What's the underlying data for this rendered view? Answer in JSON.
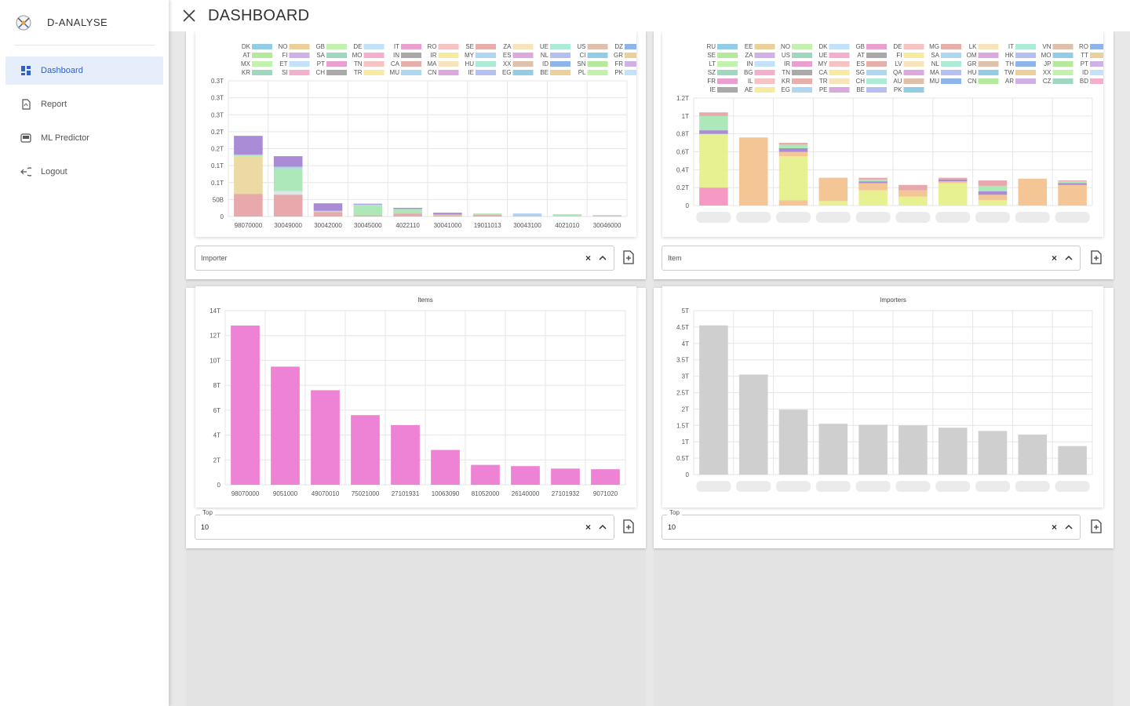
{
  "app": {
    "name": "D-ANALYSE"
  },
  "header": {
    "title": "DASHBOARD"
  },
  "sidebar": {
    "items": [
      {
        "label": "Dashboard",
        "icon": "dashboard-icon",
        "active": true
      },
      {
        "label": "Report",
        "icon": "report-icon",
        "active": false
      },
      {
        "label": "ML Predictor",
        "icon": "ml-predictor-icon",
        "active": false
      },
      {
        "label": "Logout",
        "icon": "logout-icon",
        "active": false
      }
    ]
  },
  "colors": {
    "accent": "#2f62c4",
    "active_bg": "#e6eefb",
    "bar_pink": "#ee82d4",
    "bar_gray": "#cfcfcf"
  },
  "panels": {
    "top_left": {
      "filter_placeholder": "Importer"
    },
    "top_right": {
      "filter_placeholder": "Item"
    },
    "bottom_left": {
      "top_label": "Top",
      "top_value": "10"
    },
    "bottom_right": {
      "top_label": "Top",
      "top_value": "10"
    }
  },
  "chart_data": [
    {
      "type": "bar",
      "stacked": true,
      "categories": [
        "98070000",
        "30049000",
        "30042000",
        "30045000",
        "4022110",
        "30041000",
        "19011013",
        "30043100",
        "4021010",
        "30046000"
      ],
      "yticks": [
        "0",
        "50B",
        "0.1T",
        "0.1T",
        "0.2T",
        "0.2T",
        "0.3T",
        "0.3T",
        "0.3T"
      ],
      "ylim": [
        0,
        0.36
      ],
      "legend": [
        "DK",
        "NO",
        "GB",
        "DE",
        "IT",
        "RO",
        "SE",
        "ZA",
        "UE",
        "US",
        "DZ",
        "AT",
        "FI",
        "SA",
        "MO",
        "IN",
        "IR",
        "MY",
        "ES",
        "NL",
        "CI",
        "GR",
        "MX",
        "ET",
        "PT",
        "TN",
        "CA",
        "MA",
        "HU",
        "XX",
        "ID",
        "SN",
        "FR",
        "KR",
        "SI",
        "CH",
        "TR",
        "MU",
        "CN",
        "IE",
        "EG",
        "BE",
        "PL",
        "PK"
      ],
      "series": [
        {
          "color": "#e5a0a3",
          "values": [
            0.06,
            0.058,
            0.012,
            0.003,
            0.008,
            0.003,
            0.004,
            0.0,
            0.0,
            0.001
          ]
        },
        {
          "color": "#cfe6f5",
          "values": [
            0.0,
            0.008,
            0.0,
            0.0,
            0.0,
            0.0,
            0.0,
            0.0,
            0.0,
            0.0
          ]
        },
        {
          "color": "#e9d69a",
          "values": [
            0.1,
            0.002,
            0.0,
            0.0,
            0.0,
            0.002,
            0.0,
            0.0,
            0.0,
            0.0
          ]
        },
        {
          "color": "#a4e6b0",
          "values": [
            0.004,
            0.06,
            0.003,
            0.028,
            0.012,
            0.0,
            0.004,
            0.0,
            0.006,
            0.0
          ]
        },
        {
          "color": "#a9cbf0",
          "values": [
            0.0,
            0.004,
            0.0,
            0.001,
            0.0,
            0.0,
            0.0,
            0.008,
            0.0,
            0.0
          ]
        },
        {
          "color": "#a080d0",
          "values": [
            0.05,
            0.028,
            0.02,
            0.002,
            0.003,
            0.005,
            0.0,
            0.0,
            0.0,
            0.0
          ]
        },
        {
          "color": "#cfcfcf",
          "values": [
            0.0,
            0.0,
            0.0,
            0.0,
            0.0,
            0.0,
            0.0,
            0.0,
            0.0,
            0.003
          ]
        }
      ]
    },
    {
      "type": "bar",
      "stacked": true,
      "categories": [
        "",
        "",
        "",
        "",
        "",
        "",
        "",
        "",
        "",
        ""
      ],
      "yticks": [
        "0",
        "0.2T",
        "0.4T",
        "0.6T",
        "0.8T",
        "1T",
        "1.2T"
      ],
      "ylim": [
        0,
        1.2
      ],
      "legend": [
        "RU",
        "EE",
        "NO",
        "DK",
        "GB",
        "DE",
        "MG",
        "LK",
        "IT",
        "VN",
        "RO",
        "SE",
        "ZA",
        "US",
        "UE",
        "AT",
        "FI",
        "SA",
        "OM",
        "HK",
        "MO",
        "TT",
        "LT",
        "IN",
        "IR",
        "MY",
        "ES",
        "LV",
        "NL",
        "GR",
        "TH",
        "JP",
        "PT",
        "SZ",
        "BG",
        "TN",
        "CA",
        "SG",
        "QA",
        "MA",
        "HU",
        "TW",
        "XX",
        "ID",
        "FR",
        "IL",
        "KR",
        "TR",
        "CH",
        "AU",
        "MU",
        "CN",
        "AR",
        "CZ",
        "BD",
        "IE",
        "AE",
        "EG",
        "PE",
        "BE",
        "PK"
      ],
      "series": [
        {
          "color": "#f58fbc",
          "values": [
            0.2,
            0.0,
            0.0,
            0.0,
            0.0,
            0.0,
            0.0,
            0.0,
            0.0,
            0.0
          ]
        },
        {
          "color": "#f3c08a",
          "values": [
            0.0,
            0.76,
            0.06,
            0.0,
            0.0,
            0.0,
            0.0,
            0.0,
            0.3,
            0.2
          ]
        },
        {
          "color": "#e6ef86",
          "values": [
            0.6,
            0.0,
            0.49,
            0.05,
            0.17,
            0.1,
            0.25,
            0.06,
            0.0,
            0.0
          ]
        },
        {
          "color": "#f3c08a",
          "values": [
            0.0,
            0.0,
            0.05,
            0.26,
            0.08,
            0.07,
            0.02,
            0.06,
            0.0,
            0.03
          ]
        },
        {
          "color": "#a080d0",
          "values": [
            0.04,
            0.0,
            0.04,
            0.0,
            0.02,
            0.0,
            0.02,
            0.04,
            0.0,
            0.02
          ]
        },
        {
          "color": "#a4e6b0",
          "values": [
            0.16,
            0.0,
            0.04,
            0.0,
            0.02,
            0.0,
            0.0,
            0.06,
            0.0,
            0.02
          ]
        },
        {
          "color": "#e5a0a3",
          "values": [
            0.04,
            0.0,
            0.02,
            0.0,
            0.02,
            0.06,
            0.02,
            0.06,
            0.0,
            0.01
          ]
        }
      ]
    },
    {
      "type": "bar",
      "title": "Items",
      "categories": [
        "98070000",
        "9051000",
        "49070010",
        "75021000",
        "27101931",
        "10063090",
        "81052000",
        "26140000",
        "27101932",
        "9071020"
      ],
      "values": [
        12.8,
        9.5,
        7.6,
        5.6,
        4.8,
        2.8,
        1.6,
        1.5,
        1.3,
        1.25
      ],
      "yticks": [
        "0",
        "2T",
        "4T",
        "6T",
        "8T",
        "10T",
        "12T",
        "14T"
      ],
      "ylim": [
        0,
        14
      ],
      "color": "#ee82d4"
    },
    {
      "type": "bar",
      "title": "Importers",
      "categories": [
        "",
        "",
        "",
        "",
        "",
        "",
        "",
        "",
        "",
        ""
      ],
      "values": [
        4.55,
        3.05,
        1.98,
        1.55,
        1.52,
        1.5,
        1.43,
        1.33,
        1.22,
        0.87
      ],
      "yticks": [
        "0",
        "0.5T",
        "1T",
        "1.5T",
        "2T",
        "2.5T",
        "3T",
        "3.5T",
        "4T",
        "4.5T",
        "5T"
      ],
      "ylim": [
        0,
        5
      ],
      "color": "#cfcfcf"
    }
  ]
}
